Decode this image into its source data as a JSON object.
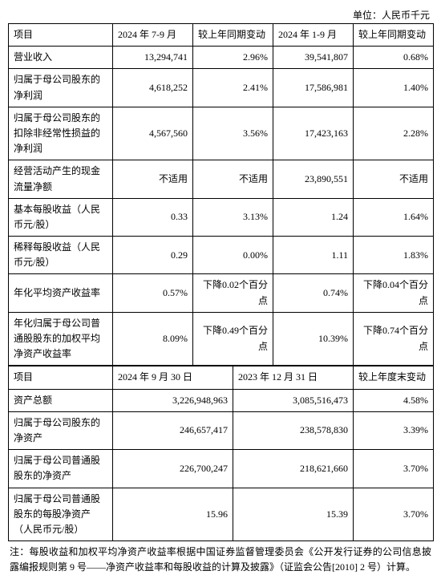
{
  "unit_label": "单位：人民币千元",
  "table1": {
    "headers": [
      "项目",
      "2024 年 7-9 月",
      "较上年同期变动",
      "2024 年 1-9 月",
      "较上年同期变动"
    ],
    "rows": [
      {
        "label": "营业收入",
        "c1": "13,294,741",
        "c2": "2.96%",
        "c3": "39,541,807",
        "c4": "0.68%"
      },
      {
        "label": "归属于母公司股东的净利润",
        "c1": "4,618,252",
        "c2": "2.41%",
        "c3": "17,586,981",
        "c4": "1.40%"
      },
      {
        "label": "归属于母公司股东的扣除非经常性损益的净利润",
        "c1": "4,567,560",
        "c2": "3.56%",
        "c3": "17,423,163",
        "c4": "2.28%"
      },
      {
        "label": "经营活动产生的现金流量净额",
        "c1": "不适用",
        "c2": "不适用",
        "c3": "23,890,551",
        "c4": "不适用"
      },
      {
        "label": "基本每股收益（人民币元/股）",
        "c1": "0.33",
        "c2": "3.13%",
        "c3": "1.24",
        "c4": "1.64%"
      },
      {
        "label": "稀释每股收益（人民币元/股）",
        "c1": "0.29",
        "c2": "0.00%",
        "c3": "1.11",
        "c4": "1.83%"
      },
      {
        "label": "年化平均资产收益率",
        "c1": "0.57%",
        "c2": "下降0.02个百分点",
        "c3": "0.74%",
        "c4": "下降0.04个百分点"
      },
      {
        "label": "年化归属于母公司普通股股东的加权平均净资产收益率",
        "c1": "8.09%",
        "c2": "下降0.49个百分点",
        "c3": "10.39%",
        "c4": "下降0.74个百分点"
      }
    ]
  },
  "table2": {
    "headers": [
      "项目",
      "2024 年 9 月 30 日",
      "2023 年 12 月 31 日",
      "较上年度末变动"
    ],
    "rows": [
      {
        "label": "资产总额",
        "c1": "3,226,948,963",
        "c2": "3,085,516,473",
        "c3": "4.58%"
      },
      {
        "label": "归属于母公司股东的净资产",
        "c1": "246,657,417",
        "c2": "238,578,830",
        "c3": "3.39%"
      },
      {
        "label": "归属于母公司普通股股东的净资产",
        "c1": "226,700,247",
        "c2": "218,621,660",
        "c3": "3.70%"
      },
      {
        "label": "归属于母公司普通股股东的每股净资产（人民币元/股）",
        "c1": "15.96",
        "c2": "15.39",
        "c3": "3.70%"
      }
    ]
  },
  "footnote": "注：每股收益和加权平均净资产收益率根据中国证券监督管理委员会《公开发行证券的公司信息披露编报规则第 9 号——净资产收益率和每股收益的计算及披露》（证监会公告[2010] 2 号）计算。"
}
